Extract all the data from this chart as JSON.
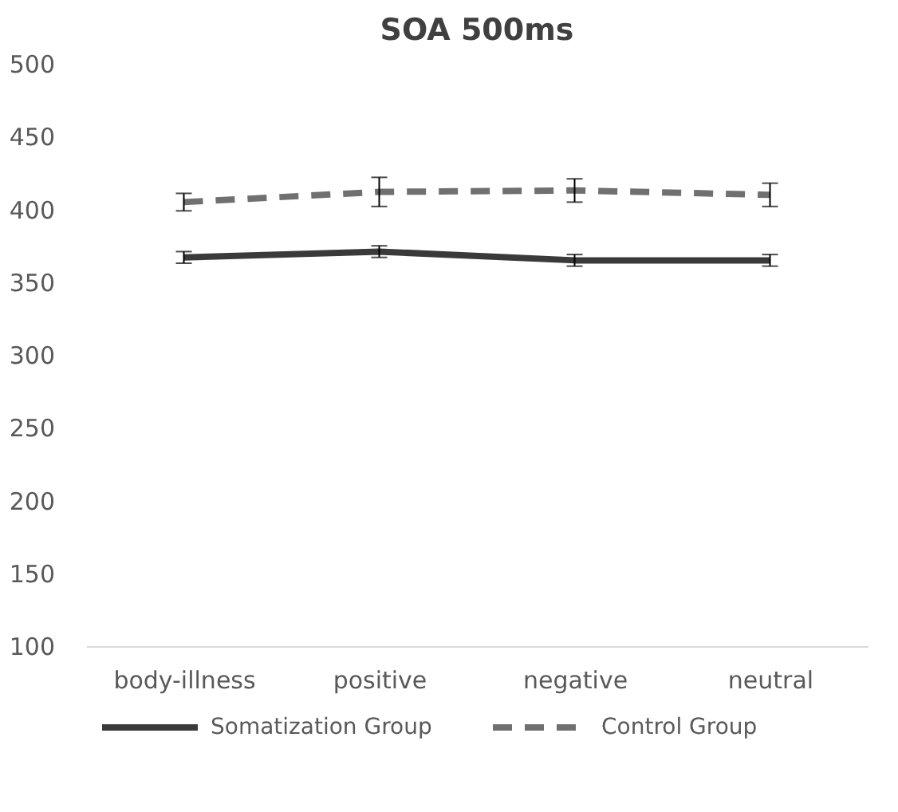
{
  "chart_data": {
    "type": "line",
    "title": "SOA 500ms",
    "categories": [
      "body-illness",
      "positive",
      "negative",
      "neutral"
    ],
    "series": [
      {
        "name": "Somatization Group",
        "color": "#3a3a3a",
        "line_style": "solid",
        "values": [
          367,
          371,
          365,
          365
        ],
        "errors": [
          4,
          4,
          4,
          4
        ]
      },
      {
        "name": "Control Group",
        "color": "#707070",
        "line_style": "dashed",
        "values": [
          405,
          412,
          413,
          410
        ],
        "errors": [
          6,
          10,
          8,
          8
        ]
      }
    ],
    "ylim": [
      100,
      500
    ],
    "yticks": [
      100,
      150,
      200,
      250,
      300,
      350,
      400,
      450,
      500
    ],
    "grid": false,
    "legend": "bottom",
    "marker": "none"
  }
}
